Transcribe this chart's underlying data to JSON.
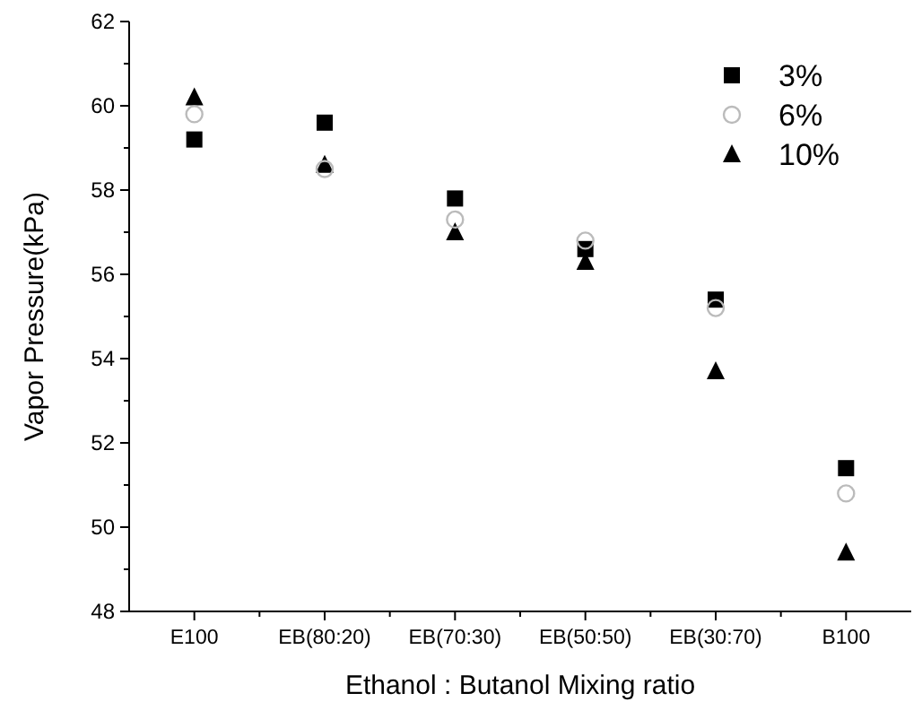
{
  "chart_data": {
    "type": "scatter",
    "xlabel": "Ethanol : Butanol Mixing ratio",
    "ylabel": "Vapor Pressure(kPa)",
    "categories": [
      "E100",
      "EB(80:20)",
      "EB(70:30)",
      "EB(50:50)",
      "EB(30:70)",
      "B100"
    ],
    "ylim": [
      48,
      62
    ],
    "yticks": [
      48,
      {
        "value": 49,
        "label": null
      },
      50,
      {
        "value": 51,
        "label": null
      },
      52,
      {
        "value": 53,
        "label": null
      },
      54,
      {
        "value": 55,
        "label": null
      },
      56,
      {
        "value": 57,
        "label": null
      },
      58,
      {
        "value": 59,
        "label": null
      },
      60,
      {
        "value": 61,
        "label": null
      },
      62
    ],
    "legend": "top right",
    "series": [
      {
        "name": "3%",
        "color": "#000000",
        "marker": "square",
        "values": [
          59.2,
          59.6,
          57.8,
          56.6,
          55.4,
          51.4
        ]
      },
      {
        "name": "6%",
        "color": "#bbbbbb",
        "marker": "circle",
        "values": [
          59.8,
          58.5,
          57.3,
          56.8,
          55.2,
          50.8
        ]
      },
      {
        "name": "10%",
        "color": "#000000",
        "marker": "triangle",
        "values": [
          60.2,
          58.6,
          57.0,
          56.3,
          53.7,
          49.4
        ]
      }
    ]
  }
}
